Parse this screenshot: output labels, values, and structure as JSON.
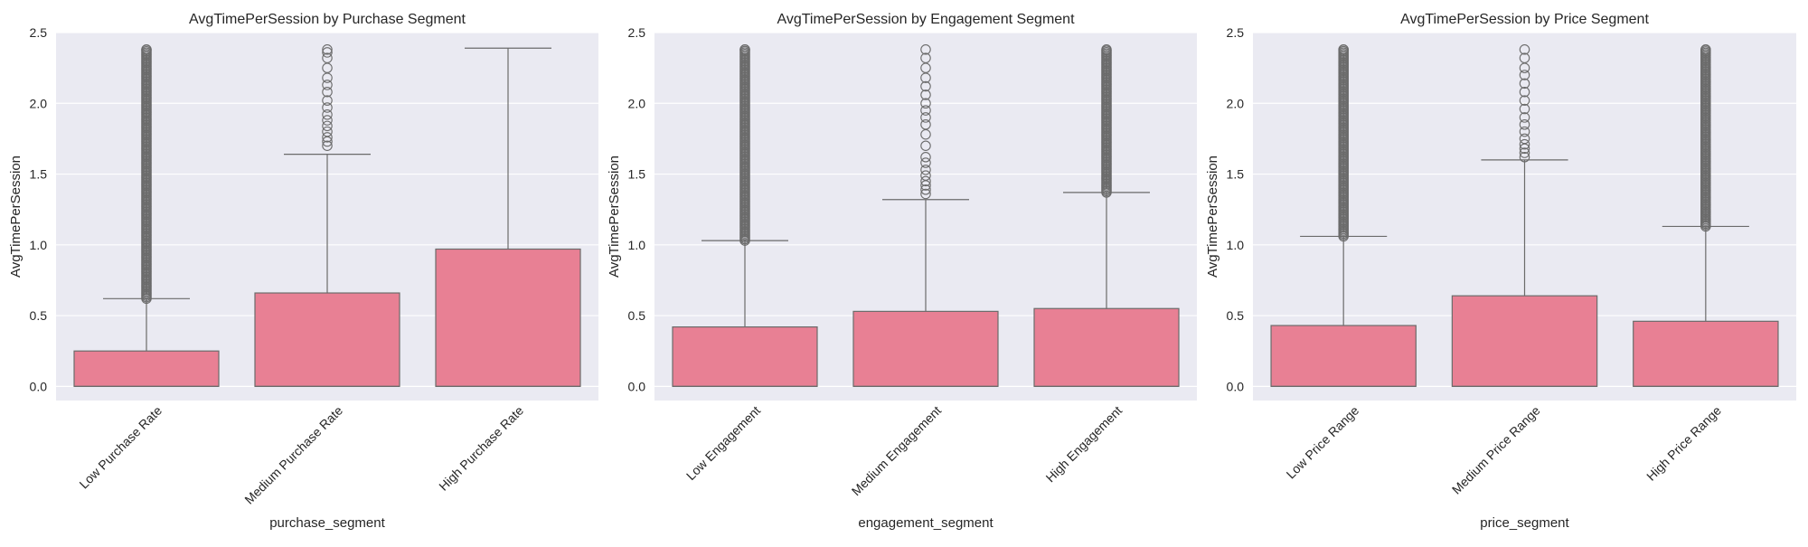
{
  "colors": {
    "plot_background": "#eaeaf2",
    "grid": "#ffffff",
    "box_fill": "#e88094",
    "box_edge": "#6b6b6b",
    "text": "#262626"
  },
  "chart_data": [
    {
      "type": "box",
      "title": "AvgTimePerSession by Purchase Segment",
      "xlabel": "purchase_segment",
      "ylabel": "AvgTimePerSession",
      "ylim": [
        -0.1,
        2.5
      ],
      "yticks": [
        0.0,
        0.5,
        1.0,
        1.5,
        2.0,
        2.5
      ],
      "ytick_labels": [
        "0.0",
        "0.5",
        "1.0",
        "1.5",
        "2.0",
        "2.5"
      ],
      "grid": true,
      "categories": [
        "Low Purchase Rate",
        "Medium Purchase Rate",
        "High Purchase Rate"
      ],
      "boxes": [
        {
          "min": 0.0,
          "q1": 0.0,
          "median": 0.0,
          "q3": 0.25,
          "max": 0.62,
          "outliers": {
            "from": 0.62,
            "to": 2.38,
            "sparse": [],
            "label": "dense"
          }
        },
        {
          "min": 0.0,
          "q1": 0.0,
          "median": 0.0,
          "q3": 0.66,
          "max": 1.64,
          "outliers": {
            "from": 1.7,
            "to": 2.38,
            "sparse": [
              1.7,
              1.73,
              1.76,
              1.8,
              1.84,
              1.88,
              1.92,
              1.97,
              2.02,
              2.08,
              2.13,
              2.18,
              2.25,
              2.32,
              2.36,
              2.38
            ],
            "label": "sparse"
          }
        },
        {
          "min": 0.0,
          "q1": 0.0,
          "median": 0.0,
          "q3": 0.97,
          "max": 2.39,
          "outliers": {
            "from": null,
            "to": null,
            "sparse": [],
            "label": "none"
          }
        }
      ]
    },
    {
      "type": "box",
      "title": "AvgTimePerSession by Engagement Segment",
      "xlabel": "engagement_segment",
      "ylabel": "AvgTimePerSession",
      "ylim": [
        -0.1,
        2.5
      ],
      "yticks": [
        0.0,
        0.5,
        1.0,
        1.5,
        2.0,
        2.5
      ],
      "ytick_labels": [
        "0.0",
        "0.5",
        "1.0",
        "1.5",
        "2.0",
        "2.5"
      ],
      "grid": true,
      "categories": [
        "Low Engagement",
        "Medium Engagement",
        "High Engagement"
      ],
      "boxes": [
        {
          "min": 0.0,
          "q1": 0.0,
          "median": 0.0,
          "q3": 0.42,
          "max": 1.03,
          "outliers": {
            "from": 1.03,
            "to": 2.38,
            "sparse": [],
            "label": "dense"
          }
        },
        {
          "min": 0.0,
          "q1": 0.0,
          "median": 0.0,
          "q3": 0.53,
          "max": 1.32,
          "outliers": {
            "from": 1.36,
            "to": 2.38,
            "sparse": [
              1.36,
              1.39,
              1.42,
              1.45,
              1.49,
              1.53,
              1.58,
              1.62,
              1.7,
              1.78,
              1.85,
              1.9,
              1.95,
              2.0,
              2.06,
              2.12,
              2.18,
              2.25,
              2.32,
              2.38
            ],
            "label": "sparse"
          }
        },
        {
          "min": 0.0,
          "q1": 0.0,
          "median": 0.0,
          "q3": 0.55,
          "max": 1.37,
          "outliers": {
            "from": 1.37,
            "to": 2.38,
            "sparse": [],
            "label": "dense"
          }
        }
      ]
    },
    {
      "type": "box",
      "title": "AvgTimePerSession by Price Segment",
      "xlabel": "price_segment",
      "ylabel": "AvgTimePerSession",
      "ylim": [
        -0.1,
        2.5
      ],
      "yticks": [
        0.0,
        0.5,
        1.0,
        1.5,
        2.0,
        2.5
      ],
      "ytick_labels": [
        "0.0",
        "0.5",
        "1.0",
        "1.5",
        "2.0",
        "2.5"
      ],
      "grid": true,
      "categories": [
        "Low Price Range",
        "Medium Price Range",
        "High Price Range"
      ],
      "boxes": [
        {
          "min": 0.0,
          "q1": 0.0,
          "median": 0.0,
          "q3": 0.43,
          "max": 1.06,
          "outliers": {
            "from": 1.06,
            "to": 2.38,
            "sparse": [],
            "label": "dense"
          }
        },
        {
          "min": 0.0,
          "q1": 0.0,
          "median": 0.0,
          "q3": 0.64,
          "max": 1.6,
          "outliers": {
            "from": 1.62,
            "to": 2.38,
            "sparse": [
              1.62,
              1.65,
              1.68,
              1.71,
              1.75,
              1.8,
              1.85,
              1.9,
              1.96,
              2.02,
              2.08,
              2.14,
              2.2,
              2.25,
              2.32,
              2.38
            ],
            "label": "sparse"
          }
        },
        {
          "min": 0.0,
          "q1": 0.0,
          "median": 0.0,
          "q3": 0.46,
          "max": 1.13,
          "outliers": {
            "from": 1.13,
            "to": 2.38,
            "sparse": [],
            "label": "dense"
          }
        }
      ]
    }
  ]
}
